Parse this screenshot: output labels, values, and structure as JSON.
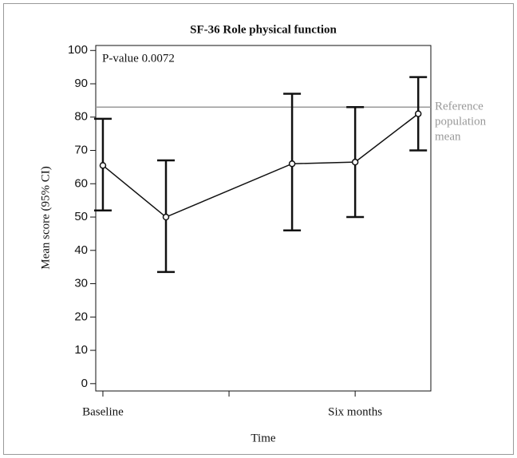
{
  "chart_data": {
    "type": "errorbar",
    "title": "SF-36 Role physical function",
    "x_label": "Time",
    "y_label": "Mean score (95% CI)",
    "annotation": "P-value 0.0072",
    "reference": {
      "value": 83,
      "label": [
        "Reference",
        "population",
        "mean"
      ],
      "color": "#999999"
    },
    "x": [
      0,
      1.5,
      4.5,
      6,
      7.5
    ],
    "series": [
      {
        "color": "#111111",
        "values": [
          65.5,
          50,
          66,
          66.5,
          81
        ],
        "lower": [
          52,
          33.5,
          46,
          50,
          70
        ],
        "upper": [
          79.5,
          67,
          87,
          83,
          92
        ]
      }
    ],
    "xlim": [
      -0.17,
      7.8
    ],
    "xticks": [
      {
        "value": 0,
        "label": "Baseline"
      },
      {
        "value": 3,
        "label": null
      },
      {
        "value": 6,
        "label": "Six months"
      }
    ],
    "ylim": [
      -2.2,
      101.5
    ],
    "yticks": [
      0,
      10,
      20,
      30,
      40,
      50,
      60,
      70,
      80,
      90,
      100
    ]
  }
}
